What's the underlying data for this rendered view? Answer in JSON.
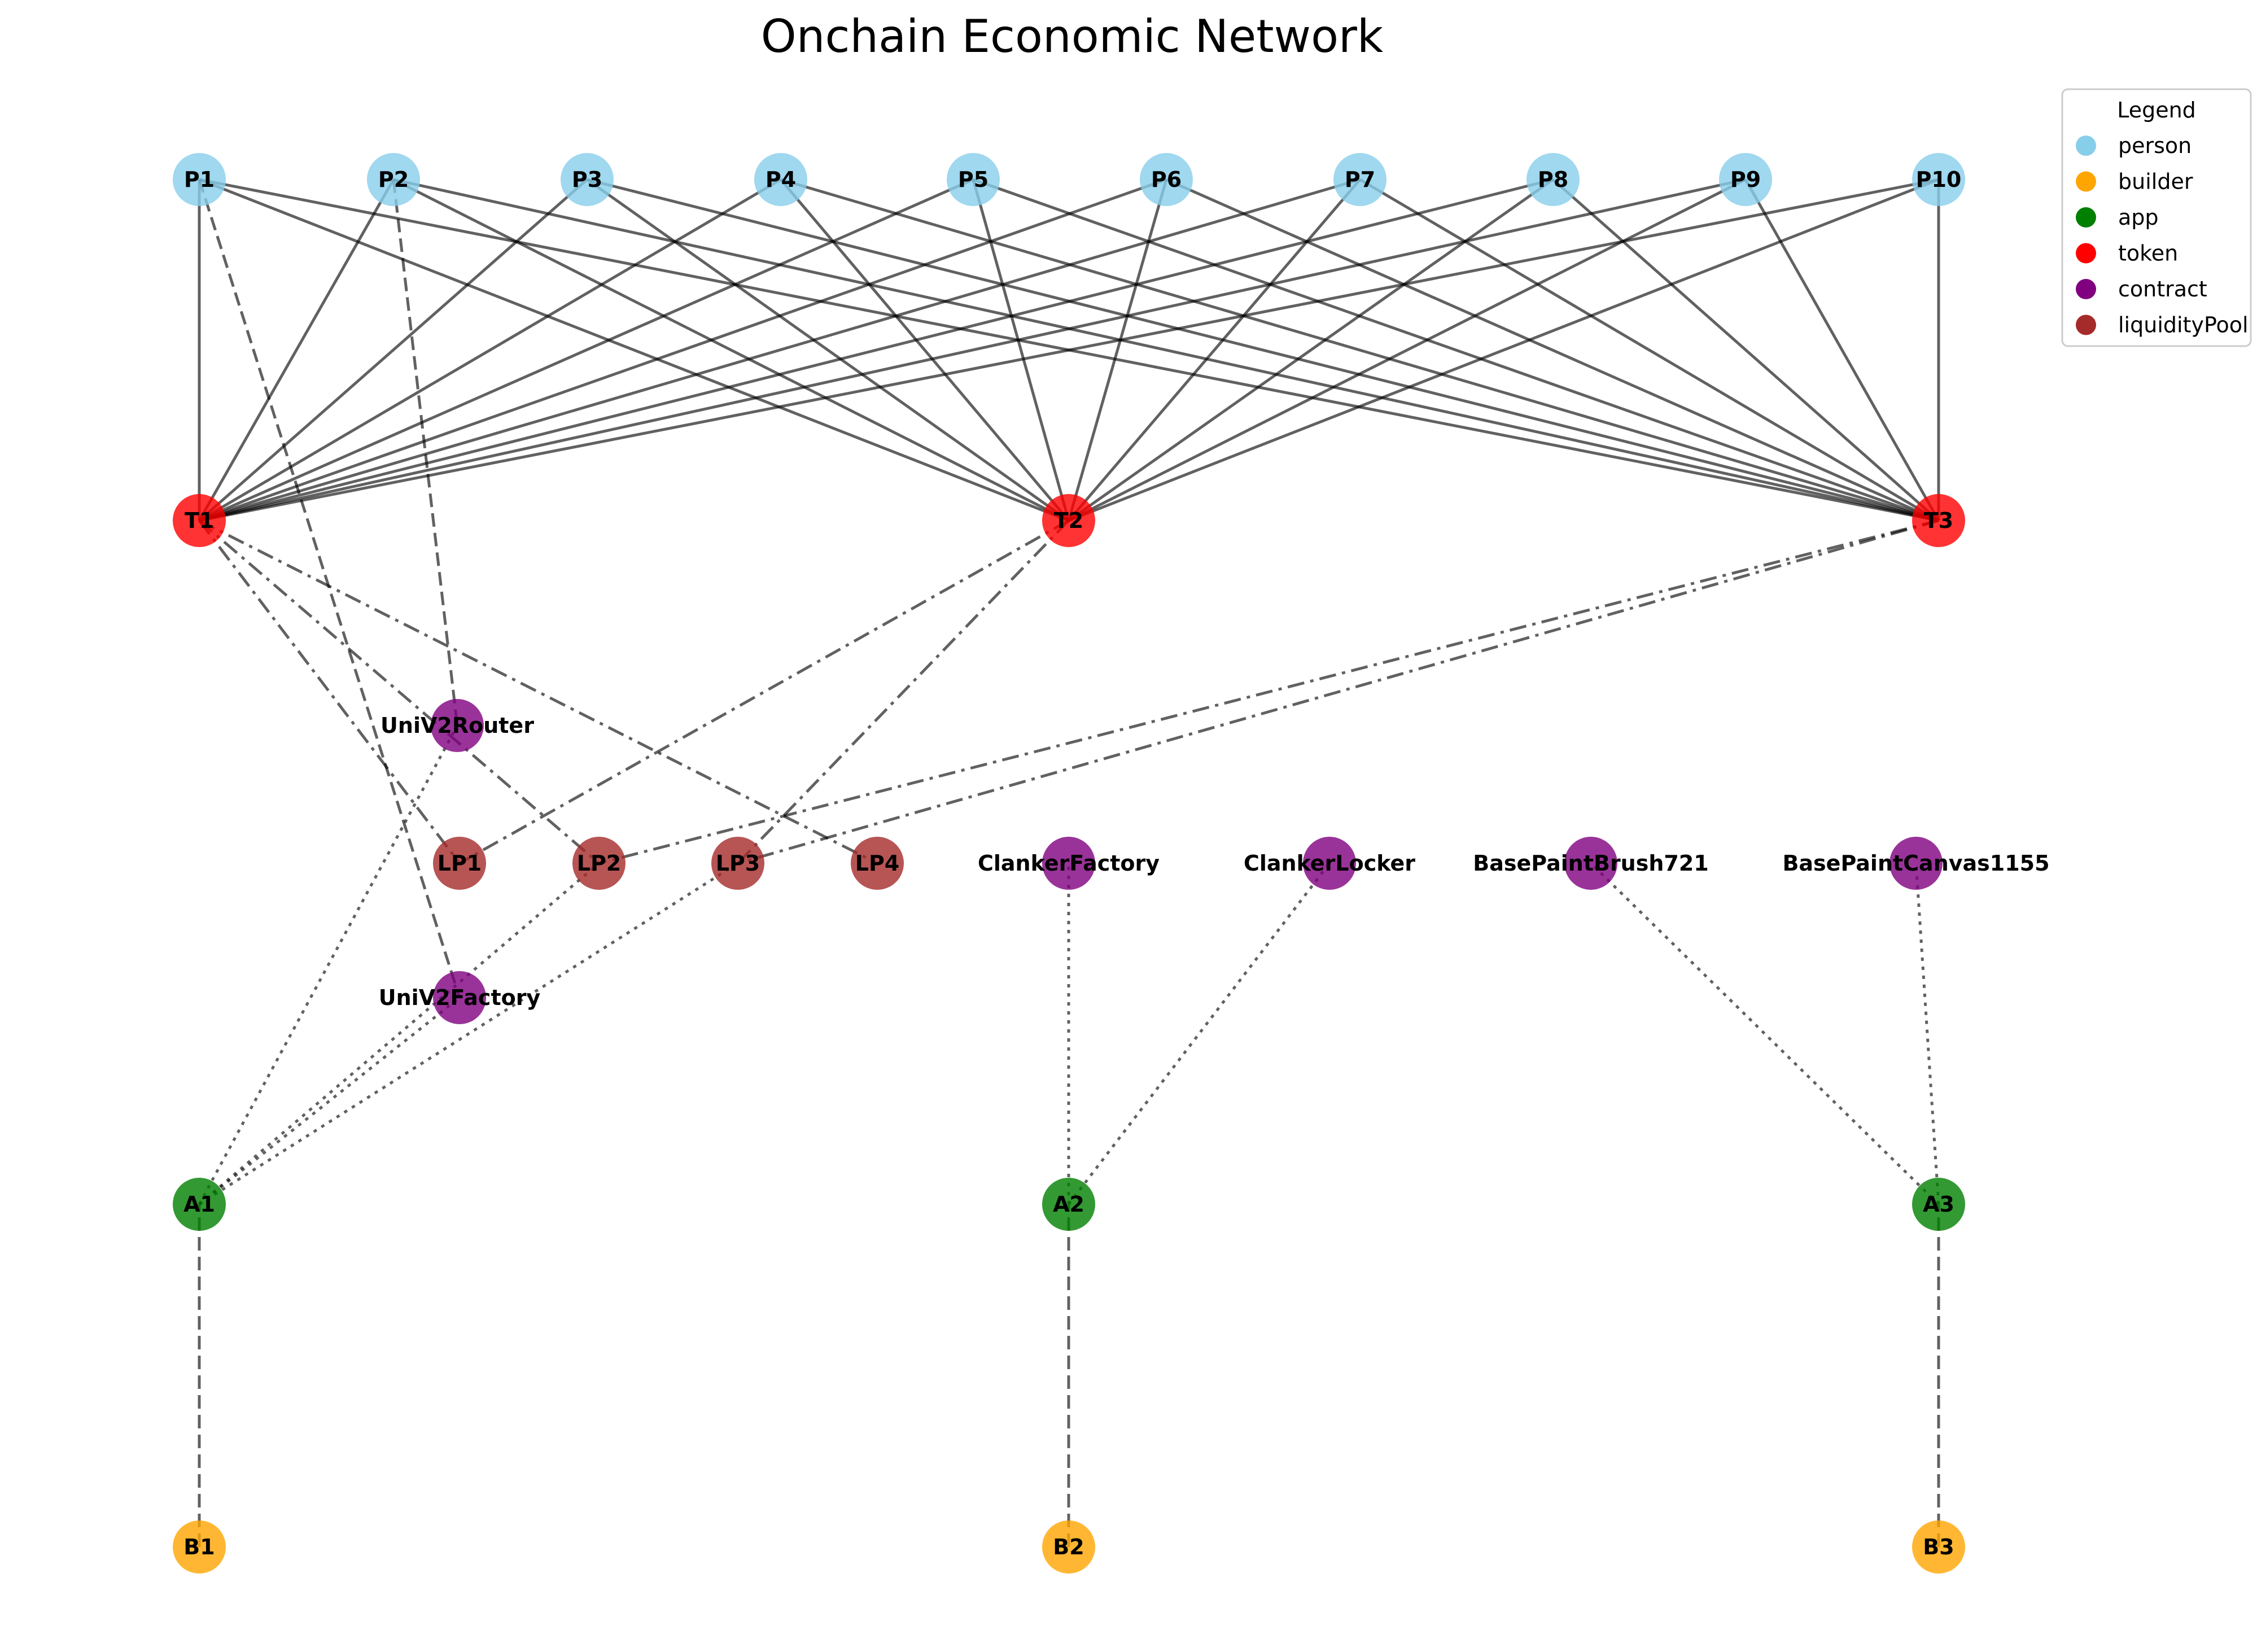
{
  "title": "Onchain Economic Network",
  "legend": {
    "title": "Legend",
    "items": [
      {
        "type": "person",
        "label": "person",
        "color": "#87ceeb"
      },
      {
        "type": "builder",
        "label": "builder",
        "color": "#ffa500"
      },
      {
        "type": "app",
        "label": "app",
        "color": "#008000"
      },
      {
        "type": "token",
        "label": "token",
        "color": "#ff0000"
      },
      {
        "type": "contract",
        "label": "contract",
        "color": "#800080"
      },
      {
        "type": "liquidityPool",
        "label": "liquidityPool",
        "color": "#a52a2a"
      }
    ]
  },
  "nodes": [
    {
      "id": "P1",
      "type": "person"
    },
    {
      "id": "P2",
      "type": "person"
    },
    {
      "id": "P3",
      "type": "person"
    },
    {
      "id": "P4",
      "type": "person"
    },
    {
      "id": "P5",
      "type": "person"
    },
    {
      "id": "P6",
      "type": "person"
    },
    {
      "id": "P7",
      "type": "person"
    },
    {
      "id": "P8",
      "type": "person"
    },
    {
      "id": "P9",
      "type": "person"
    },
    {
      "id": "P10",
      "type": "person"
    },
    {
      "id": "T1",
      "type": "token"
    },
    {
      "id": "T2",
      "type": "token"
    },
    {
      "id": "T3",
      "type": "token"
    },
    {
      "id": "UniV2Router",
      "type": "contract"
    },
    {
      "id": "LP1",
      "type": "liquidityPool"
    },
    {
      "id": "LP2",
      "type": "liquidityPool"
    },
    {
      "id": "LP3",
      "type": "liquidityPool"
    },
    {
      "id": "LP4",
      "type": "liquidityPool"
    },
    {
      "id": "ClankerFactory",
      "type": "contract"
    },
    {
      "id": "ClankerLocker",
      "type": "contract"
    },
    {
      "id": "BasePaintBrush721",
      "type": "contract"
    },
    {
      "id": "BasePaintCanvas1155",
      "type": "contract"
    },
    {
      "id": "UniV2Factory",
      "type": "contract"
    },
    {
      "id": "A1",
      "type": "app"
    },
    {
      "id": "A2",
      "type": "app"
    },
    {
      "id": "A3",
      "type": "app"
    },
    {
      "id": "B1",
      "type": "builder"
    },
    {
      "id": "B2",
      "type": "builder"
    },
    {
      "id": "B3",
      "type": "builder"
    }
  ],
  "edges": [
    {
      "source": "P1",
      "target": "T1",
      "style": "solid"
    },
    {
      "source": "P1",
      "target": "T2",
      "style": "solid"
    },
    {
      "source": "P1",
      "target": "T3",
      "style": "solid"
    },
    {
      "source": "P2",
      "target": "T1",
      "style": "solid"
    },
    {
      "source": "P2",
      "target": "T2",
      "style": "solid"
    },
    {
      "source": "P2",
      "target": "T3",
      "style": "solid"
    },
    {
      "source": "P3",
      "target": "T1",
      "style": "solid"
    },
    {
      "source": "P3",
      "target": "T2",
      "style": "solid"
    },
    {
      "source": "P3",
      "target": "T3",
      "style": "solid"
    },
    {
      "source": "P4",
      "target": "T1",
      "style": "solid"
    },
    {
      "source": "P4",
      "target": "T2",
      "style": "solid"
    },
    {
      "source": "P4",
      "target": "T3",
      "style": "solid"
    },
    {
      "source": "P5",
      "target": "T1",
      "style": "solid"
    },
    {
      "source": "P5",
      "target": "T2",
      "style": "solid"
    },
    {
      "source": "P5",
      "target": "T3",
      "style": "solid"
    },
    {
      "source": "P6",
      "target": "T1",
      "style": "solid"
    },
    {
      "source": "P6",
      "target": "T2",
      "style": "solid"
    },
    {
      "source": "P6",
      "target": "T3",
      "style": "solid"
    },
    {
      "source": "P7",
      "target": "T1",
      "style": "solid"
    },
    {
      "source": "P7",
      "target": "T2",
      "style": "solid"
    },
    {
      "source": "P7",
      "target": "T3",
      "style": "solid"
    },
    {
      "source": "P8",
      "target": "T1",
      "style": "solid"
    },
    {
      "source": "P8",
      "target": "T2",
      "style": "solid"
    },
    {
      "source": "P8",
      "target": "T3",
      "style": "solid"
    },
    {
      "source": "P9",
      "target": "T1",
      "style": "solid"
    },
    {
      "source": "P9",
      "target": "T2",
      "style": "solid"
    },
    {
      "source": "P9",
      "target": "T3",
      "style": "solid"
    },
    {
      "source": "P10",
      "target": "T1",
      "style": "solid"
    },
    {
      "source": "P10",
      "target": "T2",
      "style": "solid"
    },
    {
      "source": "P10",
      "target": "T3",
      "style": "solid"
    },
    {
      "source": "P1",
      "target": "UniV2Factory",
      "style": "dashed"
    },
    {
      "source": "P2",
      "target": "UniV2Router",
      "style": "dashed"
    },
    {
      "source": "T1",
      "target": "LP1",
      "style": "dashdot"
    },
    {
      "source": "T1",
      "target": "LP2",
      "style": "dashdot"
    },
    {
      "source": "T1",
      "target": "LP4",
      "style": "dashdot"
    },
    {
      "source": "T2",
      "target": "LP1",
      "style": "dashdot"
    },
    {
      "source": "T2",
      "target": "LP3",
      "style": "dashdot"
    },
    {
      "source": "T3",
      "target": "LP2",
      "style": "dashdot"
    },
    {
      "source": "T3",
      "target": "LP3",
      "style": "dashdot"
    },
    {
      "source": "A1",
      "target": "UniV2Router",
      "style": "dotted"
    },
    {
      "source": "A1",
      "target": "UniV2Factory",
      "style": "dotted"
    },
    {
      "source": "A1",
      "target": "LP2",
      "style": "dotted"
    },
    {
      "source": "A1",
      "target": "LP3",
      "style": "dotted"
    },
    {
      "source": "A2",
      "target": "ClankerFactory",
      "style": "dotted"
    },
    {
      "source": "A2",
      "target": "ClankerLocker",
      "style": "dotted"
    },
    {
      "source": "A3",
      "target": "BasePaintBrush721",
      "style": "dotted"
    },
    {
      "source": "A3",
      "target": "BasePaintCanvas1155",
      "style": "dotted"
    },
    {
      "source": "B1",
      "target": "A1",
      "style": "dashed"
    },
    {
      "source": "B2",
      "target": "A2",
      "style": "dashed"
    },
    {
      "source": "B3",
      "target": "A3",
      "style": "dashed"
    }
  ]
}
